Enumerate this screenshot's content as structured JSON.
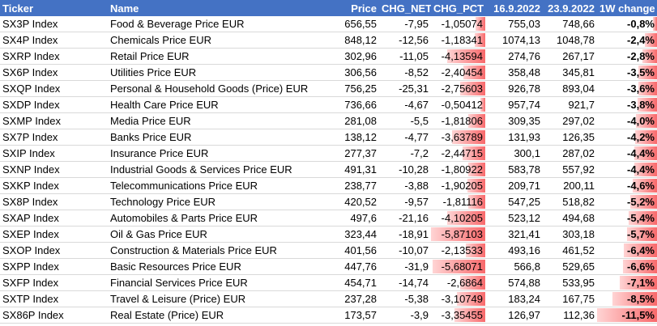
{
  "columns": {
    "ticker": "Ticker",
    "name": "Name",
    "price": "Price",
    "chg_net": "CHG_NET",
    "chg_pct": "CHG_PCT",
    "d1": "16.9.2022",
    "d2": "23.9.2022",
    "w1": "1W change"
  },
  "rows": [
    {
      "ticker": "SX3P Index",
      "name": "Food & Beverage Price EUR",
      "price": "656,55",
      "chg_net": "-7,95",
      "chg_pct": "-1,05074",
      "d1": "755,03",
      "d2": "748,66",
      "w1": "-0,8%",
      "pct": -1.05074,
      "w1v": -0.8
    },
    {
      "ticker": "SX4P Index",
      "name": "Chemicals Price EUR",
      "price": "848,12",
      "chg_net": "-12,56",
      "chg_pct": "-1,18341",
      "d1": "1074,13",
      "d2": "1048,78",
      "w1": "-2,4%",
      "pct": -1.18341,
      "w1v": -2.4
    },
    {
      "ticker": "SXRP Index",
      "name": "Retail Price EUR",
      "price": "302,96",
      "chg_net": "-11,05",
      "chg_pct": "-4,13594",
      "d1": "274,76",
      "d2": "267,17",
      "w1": "-2,8%",
      "pct": -4.13594,
      "w1v": -2.8
    },
    {
      "ticker": "SX6P Index",
      "name": "Utilities Price EUR",
      "price": "306,56",
      "chg_net": "-8,52",
      "chg_pct": "-2,40454",
      "d1": "358,48",
      "d2": "345,81",
      "w1": "-3,5%",
      "pct": -2.40454,
      "w1v": -3.5
    },
    {
      "ticker": "SXQP Index",
      "name": "Personal & Household Goods (Price) EUR",
      "price": "756,25",
      "chg_net": "-25,31",
      "chg_pct": "-2,75603",
      "d1": "926,78",
      "d2": "893,04",
      "w1": "-3,6%",
      "pct": -2.75603,
      "w1v": -3.6
    },
    {
      "ticker": "SXDP Index",
      "name": "Health Care Price EUR",
      "price": "736,66",
      "chg_net": "-4,67",
      "chg_pct": "-0,50412",
      "d1": "957,74",
      "d2": "921,7",
      "w1": "-3,8%",
      "pct": -0.50412,
      "w1v": -3.8
    },
    {
      "ticker": "SXMP Index",
      "name": "Media Price EUR",
      "price": "281,08",
      "chg_net": "-5,5",
      "chg_pct": "-1,81806",
      "d1": "309,35",
      "d2": "297,02",
      "w1": "-4,0%",
      "pct": -1.81806,
      "w1v": -4.0
    },
    {
      "ticker": "SX7P Index",
      "name": "Banks Price EUR",
      "price": "138,12",
      "chg_net": "-4,77",
      "chg_pct": "-3,63789",
      "d1": "131,93",
      "d2": "126,35",
      "w1": "-4,2%",
      "pct": -3.63789,
      "w1v": -4.2
    },
    {
      "ticker": "SXIP Index",
      "name": "Insurance Price EUR",
      "price": "277,37",
      "chg_net": "-7,2",
      "chg_pct": "-2,44715",
      "d1": "300,1",
      "d2": "287,02",
      "w1": "-4,4%",
      "pct": -2.44715,
      "w1v": -4.4
    },
    {
      "ticker": "SXNP Index",
      "name": "Industrial Goods & Services Price EUR",
      "price": "491,31",
      "chg_net": "-10,28",
      "chg_pct": "-1,80922",
      "d1": "583,78",
      "d2": "557,92",
      "w1": "-4,4%",
      "pct": -1.80922,
      "w1v": -4.4
    },
    {
      "ticker": "SXKP Index",
      "name": "Telecommunications Price EUR",
      "price": "238,77",
      "chg_net": "-3,88",
      "chg_pct": "-1,90205",
      "d1": "209,71",
      "d2": "200,11",
      "w1": "-4,6%",
      "pct": -1.90205,
      "w1v": -4.6
    },
    {
      "ticker": "SX8P Index",
      "name": "Technology Price EUR",
      "price": "420,52",
      "chg_net": "-9,57",
      "chg_pct": "-1,81116",
      "d1": "547,25",
      "d2": "518,82",
      "w1": "-5,2%",
      "pct": -1.81116,
      "w1v": -5.2
    },
    {
      "ticker": "SXAP Index",
      "name": "Automobiles & Parts Price EUR",
      "price": "497,6",
      "chg_net": "-21,16",
      "chg_pct": "-4,10205",
      "d1": "523,12",
      "d2": "494,68",
      "w1": "-5,4%",
      "pct": -4.10205,
      "w1v": -5.4
    },
    {
      "ticker": "SXEP Index",
      "name": "Oil & Gas Price EUR",
      "price": "323,44",
      "chg_net": "-18,91",
      "chg_pct": "-5,87103",
      "d1": "321,41",
      "d2": "303,18",
      "w1": "-5,7%",
      "pct": -5.87103,
      "w1v": -5.7
    },
    {
      "ticker": "SXOP Index",
      "name": "Construction & Materials Price EUR",
      "price": "401,56",
      "chg_net": "-10,07",
      "chg_pct": "-2,13533",
      "d1": "493,16",
      "d2": "461,52",
      "w1": "-6,4%",
      "pct": -2.13533,
      "w1v": -6.4
    },
    {
      "ticker": "SXPP Index",
      "name": "Basic Resources Price EUR",
      "price": "447,76",
      "chg_net": "-31,9",
      "chg_pct": "-5,68071",
      "d1": "566,8",
      "d2": "529,65",
      "w1": "-6,6%",
      "pct": -5.68071,
      "w1v": -6.6
    },
    {
      "ticker": "SXFP Index",
      "name": "Financial Services Price EUR",
      "price": "454,71",
      "chg_net": "-14,74",
      "chg_pct": "-2,6864",
      "d1": "574,88",
      "d2": "533,95",
      "w1": "-7,1%",
      "pct": -2.6864,
      "w1v": -7.1
    },
    {
      "ticker": "SXTP Index",
      "name": "Travel & Leisure (Price) EUR",
      "price": "237,28",
      "chg_net": "-5,38",
      "chg_pct": "-3,10749",
      "d1": "183,24",
      "d2": "167,75",
      "w1": "-8,5%",
      "pct": -3.10749,
      "w1v": -8.5
    },
    {
      "ticker": "SX86P Index",
      "name": "Real Estate (Price) EUR",
      "price": "173,57",
      "chg_net": "-3,9",
      "chg_pct": "-3,35455",
      "d1": "126,97",
      "d2": "112,36",
      "w1": "-11,5%",
      "pct": -3.35455,
      "w1v": -11.5
    }
  ],
  "colors": {
    "header_bg": "#4472c4",
    "bar_fill": "#f8696b"
  }
}
